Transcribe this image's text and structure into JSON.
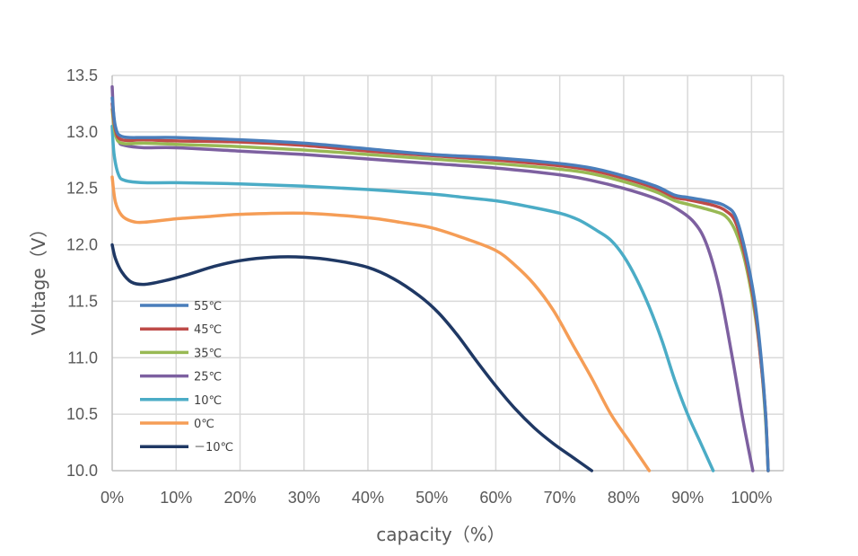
{
  "chart_data": {
    "type": "line",
    "title": "",
    "xlabel": "capacity（%）",
    "ylabel": "Voltage（V）",
    "xlim": [
      0,
      105
    ],
    "ylim": [
      10.0,
      13.5
    ],
    "x_ticks": [
      0,
      10,
      20,
      30,
      40,
      50,
      60,
      70,
      80,
      90,
      100
    ],
    "x_tick_labels": [
      "0%",
      "10%",
      "20%",
      "30%",
      "40%",
      "50%",
      "60%",
      "70%",
      "80%",
      "90%",
      "100%"
    ],
    "y_ticks": [
      10.0,
      10.5,
      11.0,
      11.5,
      12.0,
      12.5,
      13.0,
      13.5
    ],
    "y_tick_labels": [
      "10.0",
      "10.5",
      "11.0",
      "11.5",
      "12.0",
      "12.5",
      "13.0",
      "13.5"
    ],
    "grid": true,
    "legend_position": "bottom-left",
    "series": [
      {
        "name": "55℃",
        "color": "#4a7ebb",
        "points": [
          [
            0,
            13.3
          ],
          [
            0.5,
            13.05
          ],
          [
            1.5,
            12.96
          ],
          [
            5,
            12.95
          ],
          [
            10,
            12.95
          ],
          [
            20,
            12.93
          ],
          [
            30,
            12.9
          ],
          [
            40,
            12.85
          ],
          [
            50,
            12.8
          ],
          [
            60,
            12.77
          ],
          [
            70,
            12.72
          ],
          [
            75,
            12.68
          ],
          [
            80,
            12.61
          ],
          [
            85,
            12.52
          ],
          [
            88,
            12.44
          ],
          [
            90,
            12.42
          ],
          [
            94,
            12.38
          ],
          [
            96,
            12.34
          ],
          [
            97.5,
            12.25
          ],
          [
            99,
            11.95
          ],
          [
            100.5,
            11.5
          ],
          [
            101.5,
            11.0
          ],
          [
            102.2,
            10.5
          ],
          [
            102.6,
            10.0
          ]
        ]
      },
      {
        "name": "45℃",
        "color": "#be4b48",
        "points": [
          [
            0,
            13.25
          ],
          [
            0.5,
            13.02
          ],
          [
            1.5,
            12.93
          ],
          [
            5,
            12.93
          ],
          [
            10,
            12.92
          ],
          [
            20,
            12.91
          ],
          [
            30,
            12.88
          ],
          [
            40,
            12.83
          ],
          [
            50,
            12.79
          ],
          [
            60,
            12.75
          ],
          [
            70,
            12.7
          ],
          [
            75,
            12.66
          ],
          [
            80,
            12.59
          ],
          [
            85,
            12.5
          ],
          [
            88,
            12.42
          ],
          [
            90,
            12.4
          ],
          [
            94,
            12.35
          ],
          [
            96,
            12.3
          ],
          [
            97.5,
            12.2
          ],
          [
            99,
            11.9
          ],
          [
            100.5,
            11.45
          ],
          [
            101.5,
            10.95
          ],
          [
            102.2,
            10.5
          ],
          [
            102.6,
            10.0
          ]
        ]
      },
      {
        "name": "35℃",
        "color": "#98b954",
        "points": [
          [
            0,
            13.2
          ],
          [
            0.5,
            12.98
          ],
          [
            1.5,
            12.9
          ],
          [
            5,
            12.9
          ],
          [
            10,
            12.89
          ],
          [
            20,
            12.87
          ],
          [
            30,
            12.84
          ],
          [
            40,
            12.8
          ],
          [
            50,
            12.76
          ],
          [
            60,
            12.72
          ],
          [
            70,
            12.67
          ],
          [
            75,
            12.63
          ],
          [
            80,
            12.56
          ],
          [
            85,
            12.47
          ],
          [
            88,
            12.39
          ],
          [
            90,
            12.36
          ],
          [
            94,
            12.3
          ],
          [
            96,
            12.25
          ],
          [
            97.5,
            12.12
          ],
          [
            99,
            11.85
          ],
          [
            100.5,
            11.4
          ],
          [
            101.5,
            10.95
          ],
          [
            102.2,
            10.45
          ],
          [
            102.6,
            10.0
          ]
        ]
      },
      {
        "name": "25℃",
        "color": "#7d60a0",
        "points": [
          [
            0,
            13.4
          ],
          [
            0.3,
            13.1
          ],
          [
            1,
            12.92
          ],
          [
            2,
            12.88
          ],
          [
            5,
            12.86
          ],
          [
            10,
            12.86
          ],
          [
            20,
            12.83
          ],
          [
            30,
            12.8
          ],
          [
            40,
            12.76
          ],
          [
            50,
            12.72
          ],
          [
            60,
            12.68
          ],
          [
            70,
            12.62
          ],
          [
            75,
            12.57
          ],
          [
            80,
            12.5
          ],
          [
            85,
            12.41
          ],
          [
            88,
            12.33
          ],
          [
            91,
            12.2
          ],
          [
            93,
            12.0
          ],
          [
            95,
            11.6
          ],
          [
            97,
            11.0
          ],
          [
            98.5,
            10.5
          ],
          [
            99.5,
            10.2
          ],
          [
            100.2,
            10.0
          ]
        ]
      },
      {
        "name": "10℃",
        "color": "#4bacc6",
        "points": [
          [
            0,
            13.05
          ],
          [
            0.3,
            12.8
          ],
          [
            1,
            12.62
          ],
          [
            2,
            12.57
          ],
          [
            5,
            12.55
          ],
          [
            10,
            12.55
          ],
          [
            20,
            12.54
          ],
          [
            30,
            12.52
          ],
          [
            40,
            12.49
          ],
          [
            50,
            12.45
          ],
          [
            55,
            12.42
          ],
          [
            60,
            12.39
          ],
          [
            65,
            12.34
          ],
          [
            70,
            12.28
          ],
          [
            73,
            12.22
          ],
          [
            76,
            12.12
          ],
          [
            78,
            12.04
          ],
          [
            80,
            11.9
          ],
          [
            82,
            11.7
          ],
          [
            84,
            11.45
          ],
          [
            86,
            11.15
          ],
          [
            88,
            10.8
          ],
          [
            90,
            10.5
          ],
          [
            92,
            10.25
          ],
          [
            94,
            10.0
          ]
        ]
      },
      {
        "name": "0℃",
        "color": "#f59d56",
        "points": [
          [
            0,
            12.6
          ],
          [
            0.5,
            12.38
          ],
          [
            1.5,
            12.26
          ],
          [
            3,
            12.21
          ],
          [
            5,
            12.2
          ],
          [
            10,
            12.23
          ],
          [
            15,
            12.25
          ],
          [
            20,
            12.27
          ],
          [
            30,
            12.28
          ],
          [
            40,
            12.24
          ],
          [
            45,
            12.2
          ],
          [
            50,
            12.15
          ],
          [
            55,
            12.06
          ],
          [
            60,
            11.95
          ],
          [
            63,
            11.82
          ],
          [
            66,
            11.65
          ],
          [
            69,
            11.42
          ],
          [
            72,
            11.12
          ],
          [
            75,
            10.82
          ],
          [
            78,
            10.5
          ],
          [
            81,
            10.25
          ],
          [
            84,
            10.0
          ]
        ]
      },
      {
        "name": "－10℃",
        "color": "#1f3864",
        "points": [
          [
            0,
            12.0
          ],
          [
            0.5,
            11.88
          ],
          [
            1.5,
            11.76
          ],
          [
            3,
            11.67
          ],
          [
            5,
            11.65
          ],
          [
            8,
            11.68
          ],
          [
            12,
            11.74
          ],
          [
            16,
            11.81
          ],
          [
            20,
            11.86
          ],
          [
            25,
            11.89
          ],
          [
            30,
            11.89
          ],
          [
            35,
            11.86
          ],
          [
            40,
            11.8
          ],
          [
            44,
            11.7
          ],
          [
            48,
            11.55
          ],
          [
            51,
            11.4
          ],
          [
            54,
            11.2
          ],
          [
            57,
            10.97
          ],
          [
            60,
            10.75
          ],
          [
            63,
            10.55
          ],
          [
            66,
            10.38
          ],
          [
            69,
            10.24
          ],
          [
            72,
            10.12
          ],
          [
            75,
            10.0
          ]
        ]
      }
    ]
  }
}
